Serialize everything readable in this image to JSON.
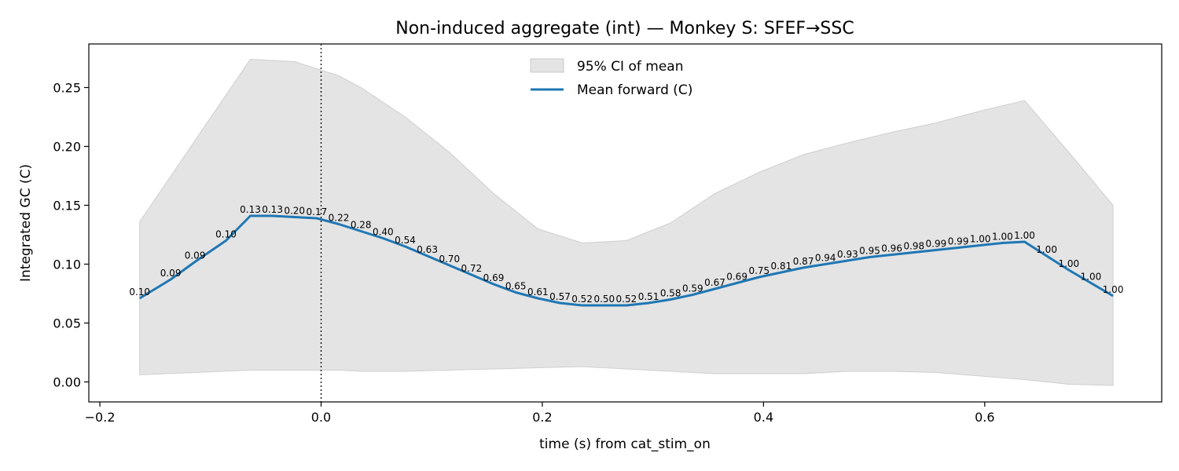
{
  "chart_data": {
    "type": "line",
    "title": "Non-induced aggregate (int) — Monkey S: SFEF→SSC",
    "xlabel": "time (s) from cat_stim_on",
    "ylabel": "Integrated GC (C)",
    "xlim": [
      -0.21,
      0.76
    ],
    "ylim": [
      -0.017,
      0.287
    ],
    "xticks": [
      -0.2,
      0.0,
      0.2,
      0.4,
      0.6
    ],
    "xtick_labels": [
      "−0.2",
      "0.0",
      "0.2",
      "0.4",
      "0.6"
    ],
    "yticks": [
      0.0,
      0.05,
      0.1,
      0.15,
      0.2,
      0.25
    ],
    "ytick_labels": [
      "0.00",
      "0.05",
      "0.10",
      "0.15",
      "0.20",
      "0.25"
    ],
    "vline_x": 0.0,
    "grid": false,
    "legend_position": "top-center",
    "series": [
      {
        "name": "Mean forward (C)",
        "color": "#1f77b4",
        "x": [
          -0.164,
          -0.136,
          -0.114,
          -0.086,
          -0.064,
          -0.044,
          -0.024,
          -0.004,
          0.016,
          0.036,
          0.056,
          0.076,
          0.096,
          0.116,
          0.136,
          0.156,
          0.176,
          0.196,
          0.216,
          0.236,
          0.256,
          0.276,
          0.296,
          0.316,
          0.336,
          0.356,
          0.376,
          0.396,
          0.416,
          0.436,
          0.456,
          0.476,
          0.496,
          0.516,
          0.536,
          0.556,
          0.576,
          0.596,
          0.616,
          0.636,
          0.656,
          0.676,
          0.696,
          0.716
        ],
        "y": [
          0.071,
          0.087,
          0.102,
          0.12,
          0.141,
          0.141,
          0.14,
          0.139,
          0.134,
          0.128,
          0.122,
          0.115,
          0.107,
          0.099,
          0.091,
          0.083,
          0.076,
          0.071,
          0.067,
          0.065,
          0.065,
          0.065,
          0.067,
          0.07,
          0.074,
          0.079,
          0.084,
          0.089,
          0.093,
          0.097,
          0.1,
          0.103,
          0.106,
          0.108,
          0.11,
          0.112,
          0.114,
          0.116,
          0.118,
          0.119,
          0.107,
          0.095,
          0.084,
          0.073
        ],
        "point_labels": [
          "0.10",
          "0.09",
          "0.09",
          "0.10",
          "0.13",
          "0.13",
          "0.20",
          "0.17",
          "0.22",
          "0.28",
          "0.40",
          "0.54",
          "0.63",
          "0.70",
          "0.72",
          "0.69",
          "0.65",
          "0.61",
          "0.57",
          "0.52",
          "0.50",
          "0.52",
          "0.51",
          "0.58",
          "0.59",
          "0.67",
          "0.69",
          "0.75",
          "0.81",
          "0.87",
          "0.94",
          "0.93",
          "0.95",
          "0.96",
          "0.98",
          "0.99",
          "0.99",
          "1.00",
          "1.00",
          "1.00",
          "1.00",
          "1.00",
          "1.00",
          "1.00"
        ]
      }
    ],
    "band": {
      "name": "95% CI of mean",
      "color": "#d3d3d3",
      "x": [
        -0.164,
        -0.064,
        -0.024,
        0.016,
        0.036,
        0.076,
        0.116,
        0.156,
        0.196,
        0.236,
        0.276,
        0.316,
        0.356,
        0.396,
        0.436,
        0.476,
        0.516,
        0.556,
        0.596,
        0.636,
        0.676,
        0.716
      ],
      "upper": [
        0.136,
        0.274,
        0.272,
        0.26,
        0.25,
        0.225,
        0.195,
        0.16,
        0.13,
        0.118,
        0.12,
        0.135,
        0.16,
        0.178,
        0.193,
        0.203,
        0.212,
        0.22,
        0.23,
        0.239,
        0.195,
        0.15
      ],
      "lower": [
        0.006,
        0.01,
        0.01,
        0.01,
        0.009,
        0.009,
        0.01,
        0.011,
        0.012,
        0.013,
        0.011,
        0.009,
        0.007,
        0.007,
        0.007,
        0.009,
        0.009,
        0.008,
        0.005,
        0.002,
        -0.002,
        -0.003
      ]
    }
  }
}
